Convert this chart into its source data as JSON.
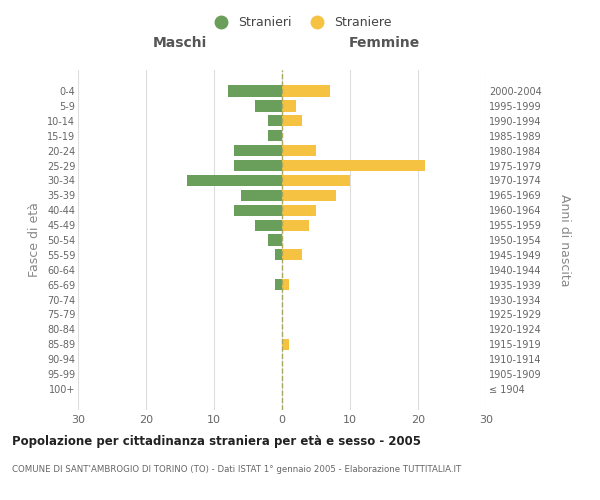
{
  "age_groups": [
    "100+",
    "95-99",
    "90-94",
    "85-89",
    "80-84",
    "75-79",
    "70-74",
    "65-69",
    "60-64",
    "55-59",
    "50-54",
    "45-49",
    "40-44",
    "35-39",
    "30-34",
    "25-29",
    "20-24",
    "15-19",
    "10-14",
    "5-9",
    "0-4"
  ],
  "birth_years": [
    "≤ 1904",
    "1905-1909",
    "1910-1914",
    "1915-1919",
    "1920-1924",
    "1925-1929",
    "1930-1934",
    "1935-1939",
    "1940-1944",
    "1945-1949",
    "1950-1954",
    "1955-1959",
    "1960-1964",
    "1965-1969",
    "1970-1974",
    "1975-1979",
    "1980-1984",
    "1985-1989",
    "1990-1994",
    "1995-1999",
    "2000-2004"
  ],
  "maschi": [
    0,
    0,
    0,
    0,
    0,
    0,
    0,
    1,
    0,
    1,
    2,
    4,
    7,
    6,
    14,
    7,
    7,
    2,
    2,
    4,
    8
  ],
  "femmine": [
    0,
    0,
    0,
    1,
    0,
    0,
    0,
    1,
    0,
    3,
    0,
    4,
    5,
    8,
    10,
    21,
    5,
    0,
    3,
    2,
    7
  ],
  "color_maschi": "#6a9e5b",
  "color_femmine": "#f5c242",
  "title": "Popolazione per cittadinanza straniera per età e sesso - 2005",
  "subtitle": "COMUNE DI SANT'AMBROGIO DI TORINO (TO) - Dati ISTAT 1° gennaio 2005 - Elaborazione TUTTITALIA.IT",
  "xlabel_left": "Maschi",
  "xlabel_right": "Femmine",
  "ylabel_left": "Fasce di età",
  "ylabel_right": "Anni di nascita",
  "legend_maschi": "Stranieri",
  "legend_femmine": "Straniere",
  "xlim": 30,
  "background_color": "#ffffff",
  "grid_color": "#dddddd"
}
